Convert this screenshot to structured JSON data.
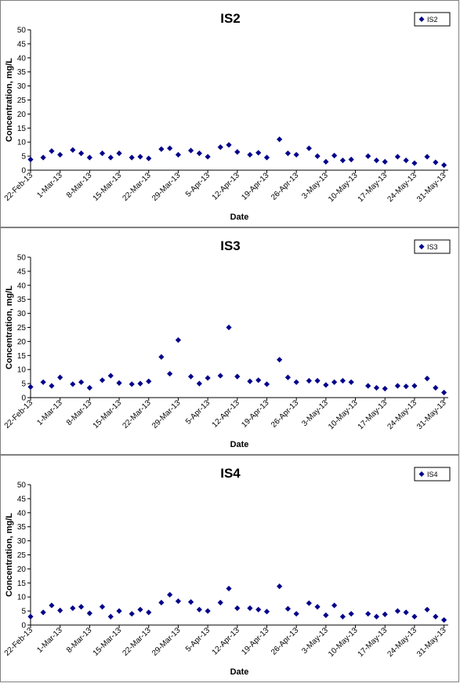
{
  "chart_data": [
    {
      "type": "scatter",
      "title": "IS2",
      "xlabel": "Date",
      "ylabel": "Concentration, mg/L",
      "ylim": [
        0,
        50
      ],
      "yticks": [
        0,
        5,
        10,
        15,
        20,
        25,
        30,
        35,
        40,
        45,
        50
      ],
      "xlim": [
        "2013-02-22",
        "2013-06-01"
      ],
      "xtick_dates": [
        "2013-02-22",
        "2013-03-01",
        "2013-03-08",
        "2013-03-15",
        "2013-03-22",
        "2013-03-29",
        "2013-04-05",
        "2013-04-12",
        "2013-04-19",
        "2013-04-26",
        "2013-05-03",
        "2013-05-10",
        "2013-05-17",
        "2013-05-24",
        "2013-05-31"
      ],
      "xtick_labels": [
        "22-Feb-13",
        "1-Mar-13",
        "8-Mar-13",
        "15-Mar-13",
        "22-Mar-13",
        "29-Mar-13",
        "5-Apr-13",
        "12-Apr-13",
        "19-Apr-13",
        "26-Apr-13",
        "3-May-13",
        "10-May-13",
        "17-May-13",
        "24-May-13",
        "31-May-13"
      ],
      "grid": false,
      "legend": "top-right",
      "series": [
        {
          "name": "IS2",
          "color": "#00008B",
          "marker": "diamond",
          "points": [
            [
              "2013-02-22",
              3.8
            ],
            [
              "2013-02-25",
              4.5
            ],
            [
              "2013-02-27",
              6.8
            ],
            [
              "2013-03-01",
              5.5
            ],
            [
              "2013-03-04",
              7.2
            ],
            [
              "2013-03-06",
              6.0
            ],
            [
              "2013-03-08",
              4.5
            ],
            [
              "2013-03-11",
              6.0
            ],
            [
              "2013-03-13",
              4.5
            ],
            [
              "2013-03-15",
              6.0
            ],
            [
              "2013-03-18",
              4.5
            ],
            [
              "2013-03-20",
              4.8
            ],
            [
              "2013-03-22",
              4.2
            ],
            [
              "2013-03-25",
              7.5
            ],
            [
              "2013-03-27",
              7.8
            ],
            [
              "2013-03-29",
              5.5
            ],
            [
              "2013-04-01",
              7.0
            ],
            [
              "2013-04-03",
              6.0
            ],
            [
              "2013-04-05",
              4.8
            ],
            [
              "2013-04-08",
              8.2
            ],
            [
              "2013-04-10",
              9.0
            ],
            [
              "2013-04-12",
              6.5
            ],
            [
              "2013-04-15",
              5.5
            ],
            [
              "2013-04-17",
              6.2
            ],
            [
              "2013-04-19",
              4.5
            ],
            [
              "2013-04-22",
              11.0
            ],
            [
              "2013-04-24",
              6.0
            ],
            [
              "2013-04-26",
              5.5
            ],
            [
              "2013-04-29",
              7.8
            ],
            [
              "2013-05-01",
              5.0
            ],
            [
              "2013-05-03",
              3.0
            ],
            [
              "2013-05-05",
              5.2
            ],
            [
              "2013-05-07",
              3.5
            ],
            [
              "2013-05-09",
              3.8
            ],
            [
              "2013-05-13",
              5.0
            ],
            [
              "2013-05-15",
              3.5
            ],
            [
              "2013-05-17",
              3.0
            ],
            [
              "2013-05-20",
              4.8
            ],
            [
              "2013-05-22",
              3.5
            ],
            [
              "2013-05-24",
              2.5
            ],
            [
              "2013-05-27",
              4.8
            ],
            [
              "2013-05-29",
              2.8
            ],
            [
              "2013-05-31",
              1.8
            ]
          ]
        }
      ]
    },
    {
      "type": "scatter",
      "title": "IS3",
      "xlabel": "Date",
      "ylabel": "Concentration, mg/L",
      "ylim": [
        0,
        50
      ],
      "yticks": [
        0,
        5,
        10,
        15,
        20,
        25,
        30,
        35,
        40,
        45,
        50
      ],
      "xlim": [
        "2013-02-22",
        "2013-06-01"
      ],
      "xtick_dates": [
        "2013-02-22",
        "2013-03-01",
        "2013-03-08",
        "2013-03-15",
        "2013-03-22",
        "2013-03-29",
        "2013-04-05",
        "2013-04-12",
        "2013-04-19",
        "2013-04-26",
        "2013-05-03",
        "2013-05-10",
        "2013-05-17",
        "2013-05-24",
        "2013-05-31"
      ],
      "xtick_labels": [
        "22-Feb-13",
        "1-Mar-13",
        "8-Mar-13",
        "15-Mar-13",
        "22-Mar-13",
        "29-Mar-13",
        "5-Apr-13",
        "12-Apr-13",
        "19-Apr-13",
        "26-Apr-13",
        "3-May-13",
        "10-May-13",
        "17-May-13",
        "24-May-13",
        "31-May-13"
      ],
      "grid": false,
      "legend": "top-right",
      "series": [
        {
          "name": "IS3",
          "color": "#00008B",
          "marker": "diamond",
          "points": [
            [
              "2013-02-22",
              3.8
            ],
            [
              "2013-02-25",
              5.5
            ],
            [
              "2013-02-27",
              4.2
            ],
            [
              "2013-03-01",
              7.2
            ],
            [
              "2013-03-04",
              4.8
            ],
            [
              "2013-03-06",
              5.5
            ],
            [
              "2013-03-08",
              3.5
            ],
            [
              "2013-03-11",
              6.2
            ],
            [
              "2013-03-13",
              7.8
            ],
            [
              "2013-03-15",
              5.2
            ],
            [
              "2013-03-18",
              4.8
            ],
            [
              "2013-03-20",
              5.0
            ],
            [
              "2013-03-22",
              5.8
            ],
            [
              "2013-03-25",
              14.5
            ],
            [
              "2013-03-27",
              8.5
            ],
            [
              "2013-03-29",
              20.5
            ],
            [
              "2013-04-01",
              7.5
            ],
            [
              "2013-04-03",
              5.0
            ],
            [
              "2013-04-05",
              7.0
            ],
            [
              "2013-04-08",
              7.8
            ],
            [
              "2013-04-10",
              25.0
            ],
            [
              "2013-04-12",
              7.5
            ],
            [
              "2013-04-15",
              5.8
            ],
            [
              "2013-04-17",
              6.2
            ],
            [
              "2013-04-19",
              4.8
            ],
            [
              "2013-04-22",
              13.5
            ],
            [
              "2013-04-24",
              7.2
            ],
            [
              "2013-04-26",
              5.5
            ],
            [
              "2013-04-29",
              6.0
            ],
            [
              "2013-05-01",
              6.0
            ],
            [
              "2013-05-03",
              4.5
            ],
            [
              "2013-05-05",
              5.5
            ],
            [
              "2013-05-07",
              6.0
            ],
            [
              "2013-05-09",
              5.5
            ],
            [
              "2013-05-13",
              4.2
            ],
            [
              "2013-05-15",
              3.5
            ],
            [
              "2013-05-17",
              3.2
            ],
            [
              "2013-05-20",
              4.2
            ],
            [
              "2013-05-22",
              4.0
            ],
            [
              "2013-05-24",
              4.2
            ],
            [
              "2013-05-27",
              6.8
            ],
            [
              "2013-05-29",
              3.5
            ],
            [
              "2013-05-31",
              1.8
            ]
          ]
        }
      ]
    },
    {
      "type": "scatter",
      "title": "IS4",
      "xlabel": "Date",
      "ylabel": "Concentration, mg/L",
      "ylim": [
        0,
        50
      ],
      "yticks": [
        0,
        5,
        10,
        15,
        20,
        25,
        30,
        35,
        40,
        45,
        50
      ],
      "xlim": [
        "2013-02-22",
        "2013-06-01"
      ],
      "xtick_dates": [
        "2013-02-22",
        "2013-03-01",
        "2013-03-08",
        "2013-03-15",
        "2013-03-22",
        "2013-03-29",
        "2013-04-05",
        "2013-04-12",
        "2013-04-19",
        "2013-04-26",
        "2013-05-03",
        "2013-05-10",
        "2013-05-17",
        "2013-05-24",
        "2013-05-31"
      ],
      "xtick_labels": [
        "22-Feb-13",
        "1-Mar-13",
        "8-Mar-13",
        "15-Mar-13",
        "22-Mar-13",
        "29-Mar-13",
        "5-Apr-13",
        "12-Apr-13",
        "19-Apr-13",
        "26-Apr-13",
        "3-May-13",
        "10-May-13",
        "17-May-13",
        "24-May-13",
        "31-May-13"
      ],
      "grid": false,
      "legend": "top-right",
      "series": [
        {
          "name": "IS4",
          "color": "#00008B",
          "marker": "diamond",
          "points": [
            [
              "2013-02-22",
              3.0
            ],
            [
              "2013-02-25",
              4.5
            ],
            [
              "2013-02-27",
              7.0
            ],
            [
              "2013-03-01",
              5.2
            ],
            [
              "2013-03-04",
              6.0
            ],
            [
              "2013-03-06",
              6.5
            ],
            [
              "2013-03-08",
              4.2
            ],
            [
              "2013-03-11",
              6.5
            ],
            [
              "2013-03-13",
              3.0
            ],
            [
              "2013-03-15",
              5.0
            ],
            [
              "2013-03-18",
              4.0
            ],
            [
              "2013-03-20",
              5.5
            ],
            [
              "2013-03-22",
              4.5
            ],
            [
              "2013-03-25",
              8.0
            ],
            [
              "2013-03-27",
              10.8
            ],
            [
              "2013-03-29",
              8.5
            ],
            [
              "2013-04-01",
              8.2
            ],
            [
              "2013-04-03",
              5.5
            ],
            [
              "2013-04-05",
              5.0
            ],
            [
              "2013-04-08",
              8.0
            ],
            [
              "2013-04-10",
              13.0
            ],
            [
              "2013-04-12",
              6.0
            ],
            [
              "2013-04-15",
              6.0
            ],
            [
              "2013-04-17",
              5.5
            ],
            [
              "2013-04-19",
              4.8
            ],
            [
              "2013-04-22",
              13.8
            ],
            [
              "2013-04-24",
              5.8
            ],
            [
              "2013-04-26",
              4.0
            ],
            [
              "2013-04-29",
              7.8
            ],
            [
              "2013-05-01",
              6.5
            ],
            [
              "2013-05-03",
              3.5
            ],
            [
              "2013-05-05",
              7.0
            ],
            [
              "2013-05-07",
              3.0
            ],
            [
              "2013-05-09",
              4.0
            ],
            [
              "2013-05-13",
              4.0
            ],
            [
              "2013-05-15",
              3.0
            ],
            [
              "2013-05-17",
              3.8
            ],
            [
              "2013-05-20",
              5.0
            ],
            [
              "2013-05-22",
              4.5
            ],
            [
              "2013-05-24",
              3.0
            ],
            [
              "2013-05-27",
              5.5
            ],
            [
              "2013-05-29",
              3.0
            ],
            [
              "2013-05-31",
              1.8
            ]
          ]
        }
      ]
    }
  ]
}
